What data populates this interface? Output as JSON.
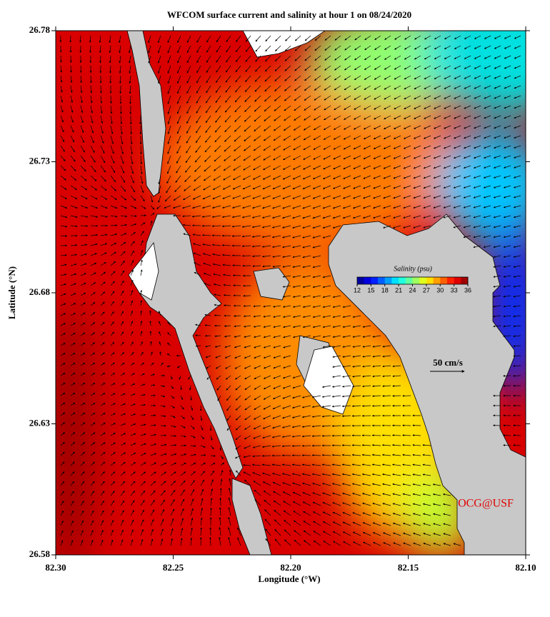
{
  "chart_data": {
    "type": "map",
    "title": "WFCOM surface current and salinity at hour 1 on 08/24/2020",
    "xlabel": "Longitude (°W)",
    "ylabel": "Latitude (°N)",
    "xlim": [
      82.3,
      82.1
    ],
    "xticks": [
      {
        "value": 82.3,
        "label": "82.30"
      },
      82.25,
      {
        "value": 82.2,
        "label": "82.20"
      },
      82.15,
      {
        "value": 82.1,
        "label": "82.10"
      }
    ],
    "ylim": [
      26.58,
      26.78
    ],
    "yticks": [
      26.58,
      26.63,
      26.68,
      26.73,
      26.78
    ],
    "colorbar": {
      "title": "Salinity (psu)",
      "lim": [
        12,
        36
      ],
      "ticks": [
        12,
        15,
        18,
        21,
        24,
        27,
        30,
        33,
        36
      ]
    },
    "scale_label": "50 cm/s",
    "credit": "OCG@USF"
  }
}
